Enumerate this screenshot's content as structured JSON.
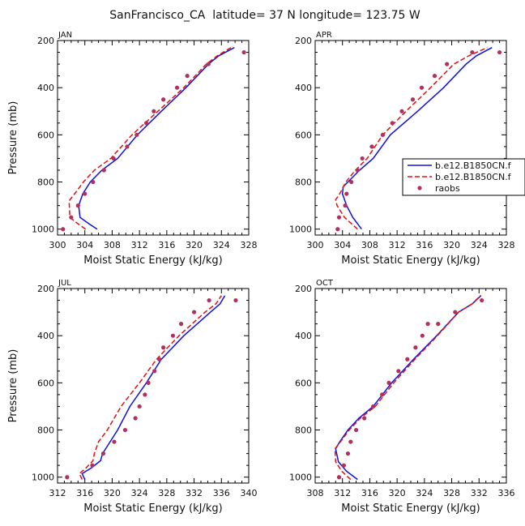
{
  "figure_title": "SanFrancisco_CA  latitude= 37 N longitude= 123.75 W",
  "colors": {
    "model1": "#1010e0",
    "model2": "#e01010",
    "raobs": "#b03060",
    "axis": "#000000"
  },
  "legend": {
    "entries": [
      "b.e12.B1850CN.f",
      "b.e12.B1850CN.f",
      "raobs"
    ]
  },
  "chart_data": [
    {
      "type": "line",
      "month": "JAN",
      "title": "JAN",
      "xlabel": "Moist Static Energy (kJ/kg)",
      "ylabel": "Pressure (mb)",
      "xlim": [
        300,
        328
      ],
      "ylim": [
        1025,
        200
      ],
      "xticks": [
        300,
        304,
        308,
        312,
        316,
        320,
        324,
        328
      ],
      "yticks": [
        200,
        400,
        600,
        800,
        1000
      ],
      "grid": false,
      "series": [
        {
          "name": "b.e12.B1850CN.f",
          "style": "solid",
          "x": [
            305.8,
            304.5,
            303.3,
            303.1,
            303.7,
            304.8,
            306.5,
            308.8,
            311.7,
            315.2,
            318.8,
            322.1,
            323.6,
            325.9
          ],
          "y": [
            1000,
            975,
            950,
            900,
            850,
            800,
            750,
            700,
            600,
            500,
            400,
            300,
            265,
            230
          ]
        },
        {
          "name": "b.e12.B1850CN.f",
          "style": "dashed",
          "x": [
            304.1,
            302.9,
            301.8,
            301.7,
            302.5,
            303.8,
            305.4,
            307.8,
            310.9,
            314.7,
            318.5,
            321.8,
            323.4,
            325.4
          ],
          "y": [
            1000,
            975,
            950,
            880,
            850,
            800,
            750,
            700,
            600,
            500,
            400,
            300,
            265,
            230
          ]
        },
        {
          "name": "raobs",
          "style": "markers",
          "x": [
            300.8,
            302.0,
            303.0,
            304.0,
            305.2,
            306.8,
            308.2,
            310.2,
            311.6,
            313.0,
            314.1,
            315.5,
            317.5,
            319.0,
            322.1,
            327.3
          ],
          "y": [
            1000,
            950,
            900,
            850,
            800,
            750,
            700,
            650,
            600,
            550,
            500,
            450,
            400,
            350,
            300,
            250
          ]
        }
      ]
    },
    {
      "type": "line",
      "month": "APR",
      "title": "APR",
      "xlabel": "Moist Static Energy (kJ/kg)",
      "ylabel": "",
      "xlim": [
        300,
        328
      ],
      "ylim": [
        1025,
        200
      ],
      "xticks": [
        300,
        304,
        308,
        312,
        316,
        320,
        324,
        328
      ],
      "yticks": [
        200,
        400,
        600,
        800,
        1000
      ],
      "grid": false,
      "series": [
        {
          "name": "b.e12.B1850CN.f",
          "style": "solid",
          "x": [
            306.8,
            305.5,
            304.6,
            304.0,
            304.1,
            304.8,
            306.5,
            308.5,
            311.0,
            315.0,
            318.8,
            322.1,
            323.6,
            325.9
          ],
          "y": [
            1000,
            950,
            900,
            850,
            820,
            800,
            750,
            700,
            600,
            500,
            400,
            300,
            265,
            230
          ]
        },
        {
          "name": "b.e12.B1850CN.f",
          "style": "dashed",
          "x": [
            306.2,
            304.3,
            303.2,
            303.0,
            303.6,
            304.5,
            305.9,
            307.6,
            309.9,
            313.3,
            316.9,
            320.3,
            322.5,
            325.2
          ],
          "y": [
            1000,
            950,
            900,
            875,
            850,
            800,
            750,
            700,
            600,
            500,
            400,
            300,
            265,
            230
          ]
        },
        {
          "name": "raobs",
          "style": "markers",
          "x": [
            303.3,
            303.5,
            304.4,
            304.6,
            305.3,
            306.2,
            306.9,
            308.3,
            309.9,
            311.3,
            312.7,
            314.3,
            315.6,
            317.5,
            319.3,
            323.0,
            327.0
          ],
          "y": [
            1000,
            950,
            900,
            850,
            800,
            750,
            700,
            650,
            600,
            550,
            500,
            450,
            400,
            350,
            300,
            250,
            250
          ]
        }
      ]
    },
    {
      "type": "line",
      "month": "JUL",
      "title": "JUL",
      "xlabel": "Moist Static Energy (kJ/kg)",
      "ylabel": "Pressure (mb)",
      "xlim": [
        312,
        340
      ],
      "ylim": [
        1025,
        200
      ],
      "xticks": [
        312,
        316,
        320,
        324,
        328,
        332,
        336,
        340
      ],
      "yticks": [
        200,
        400,
        600,
        800,
        1000
      ],
      "grid": false,
      "series": [
        {
          "name": "b.e12.B1850CN.f",
          "style": "solid",
          "x": [
            316.0,
            315.6,
            317.0,
            318.3,
            318.6,
            319.7,
            320.8,
            322.6,
            325.0,
            327.2,
            330.5,
            334.4,
            335.8,
            336.5
          ],
          "y": [
            1010,
            985,
            960,
            930,
            900,
            850,
            800,
            700,
            600,
            500,
            400,
            300,
            265,
            230
          ]
        },
        {
          "name": "b.e12.B1850CN.f",
          "style": "dashed",
          "x": [
            315.6,
            315.2,
            316.2,
            317.2,
            317.4,
            318.0,
            319.3,
            321.3,
            324.0,
            326.5,
            329.8,
            333.6,
            335.2,
            336.0
          ],
          "y": [
            1010,
            985,
            960,
            930,
            900,
            850,
            800,
            700,
            600,
            500,
            400,
            300,
            265,
            230
          ]
        },
        {
          "name": "raobs",
          "style": "markers",
          "x": [
            313.4,
            317.1,
            318.7,
            320.3,
            321.9,
            323.4,
            324.0,
            324.8,
            325.3,
            326.2,
            326.9,
            327.5,
            328.9,
            330.1,
            332.0,
            334.2,
            338.1
          ],
          "y": [
            1000,
            950,
            900,
            850,
            800,
            750,
            700,
            650,
            600,
            550,
            500,
            450,
            400,
            350,
            300,
            250,
            250
          ]
        }
      ]
    },
    {
      "type": "line",
      "month": "OCT",
      "title": "OCT",
      "xlabel": "Moist Static Energy (kJ/kg)",
      "ylabel": "",
      "xlim": [
        308,
        336
      ],
      "ylim": [
        1025,
        200
      ],
      "xticks": [
        308,
        312,
        316,
        320,
        324,
        328,
        332,
        336
      ],
      "yticks": [
        200,
        400,
        600,
        800,
        1000
      ],
      "grid": false,
      "series": [
        {
          "name": "b.e12.B1850CN.f",
          "style": "solid",
          "x": [
            314.2,
            312.6,
            311.4,
            311.0,
            311.6,
            312.8,
            314.4,
            316.5,
            319.2,
            322.4,
            325.8,
            329.0,
            331.0,
            332.3
          ],
          "y": [
            1010,
            975,
            935,
            880,
            850,
            800,
            750,
            700,
            600,
            500,
            400,
            300,
            265,
            230
          ]
        },
        {
          "name": "b.e12.B1850CN.f",
          "style": "dashed",
          "x": [
            313.2,
            311.9,
            311.0,
            310.9,
            311.7,
            313.0,
            314.6,
            316.8,
            319.5,
            322.6,
            325.9,
            329.0,
            331.0,
            332.2
          ],
          "y": [
            1010,
            975,
            935,
            880,
            850,
            800,
            750,
            700,
            600,
            500,
            400,
            300,
            265,
            230
          ]
        },
        {
          "name": "raobs",
          "style": "markers",
          "x": [
            311.5,
            312.2,
            312.8,
            313.2,
            314.0,
            315.2,
            316.5,
            317.8,
            318.8,
            320.2,
            321.5,
            322.7,
            323.7,
            324.5,
            326.0,
            328.5,
            332.4
          ],
          "y": [
            1000,
            950,
            900,
            850,
            800,
            750,
            700,
            650,
            600,
            550,
            500,
            450,
            400,
            350,
            350,
            300,
            250
          ]
        }
      ]
    }
  ]
}
